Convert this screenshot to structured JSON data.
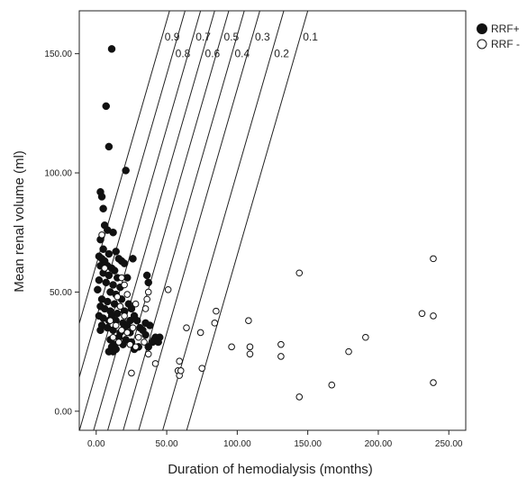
{
  "chart_data": {
    "type": "scatter",
    "xlabel": "Duration of hemodialysis (months)",
    "ylabel": "Mean renal volume (ml)",
    "xlim": [
      -12,
      262
    ],
    "ylim": [
      -8,
      168
    ],
    "x_ticks": [
      0,
      50,
      100,
      150,
      200,
      250
    ],
    "x_tick_labels": [
      "0.00",
      "50.00",
      "100.00",
      "150.00",
      "200.00",
      "250.00"
    ],
    "y_ticks": [
      0,
      50,
      100,
      150
    ],
    "y_tick_labels": [
      "0.00",
      "50.00",
      "100.00",
      "150.00"
    ],
    "grid": false,
    "legend_position": "right-top",
    "series": [
      {
        "name": "RRF+",
        "marker": "filled-circle",
        "color": "#111111",
        "points": [
          [
            3,
            92
          ],
          [
            4,
            90
          ],
          [
            11,
            152
          ],
          [
            7,
            128
          ],
          [
            9,
            111
          ],
          [
            21,
            101
          ],
          [
            5,
            85
          ],
          [
            6,
            78
          ],
          [
            8,
            76
          ],
          [
            12,
            75
          ],
          [
            3,
            72
          ],
          [
            5,
            68
          ],
          [
            9,
            66
          ],
          [
            14,
            67
          ],
          [
            2,
            65
          ],
          [
            4,
            64
          ],
          [
            6,
            63
          ],
          [
            16,
            64
          ],
          [
            18,
            63
          ],
          [
            20,
            62
          ],
          [
            26,
            64
          ],
          [
            3,
            61
          ],
          [
            8,
            61
          ],
          [
            11,
            60
          ],
          [
            5,
            58
          ],
          [
            9,
            57
          ],
          [
            13,
            59
          ],
          [
            15,
            56
          ],
          [
            22,
            56
          ],
          [
            2,
            55
          ],
          [
            7,
            54
          ],
          [
            12,
            53
          ],
          [
            17,
            52
          ],
          [
            1,
            51
          ],
          [
            10,
            50
          ],
          [
            14,
            49
          ],
          [
            4,
            47
          ],
          [
            8,
            46
          ],
          [
            13,
            45
          ],
          [
            18,
            47
          ],
          [
            23,
            45
          ],
          [
            36,
            57
          ],
          [
            37,
            54
          ],
          [
            3,
            44
          ],
          [
            6,
            43
          ],
          [
            10,
            42
          ],
          [
            15,
            41
          ],
          [
            20,
            42
          ],
          [
            25,
            43
          ],
          [
            11,
            40
          ],
          [
            2,
            40
          ],
          [
            5,
            39
          ],
          [
            9,
            38
          ],
          [
            14,
            38
          ],
          [
            19,
            37
          ],
          [
            24,
            38
          ],
          [
            4,
            36
          ],
          [
            8,
            35
          ],
          [
            12,
            34
          ],
          [
            17,
            33
          ],
          [
            22,
            36
          ],
          [
            3,
            34
          ],
          [
            27,
            40
          ],
          [
            31,
            35
          ],
          [
            10,
            30
          ],
          [
            13,
            28
          ],
          [
            16,
            31
          ],
          [
            21,
            30
          ],
          [
            25,
            29
          ],
          [
            11,
            27
          ],
          [
            12,
            25
          ],
          [
            14,
            26
          ],
          [
            19,
            28
          ],
          [
            27,
            26
          ],
          [
            33,
            34
          ],
          [
            38,
            36
          ],
          [
            41,
            30
          ],
          [
            42,
            31
          ],
          [
            40,
            29
          ],
          [
            37,
            27
          ],
          [
            35,
            32
          ],
          [
            30,
            27
          ],
          [
            9,
            25
          ],
          [
            29,
            38
          ],
          [
            35,
            37
          ],
          [
            24,
            33
          ],
          [
            20,
            35
          ],
          [
            45,
            31
          ],
          [
            44,
            29
          ]
        ]
      },
      {
        "name": "RRF -",
        "marker": "open-circle",
        "color": "#111111",
        "points": [
          [
            4,
            74
          ],
          [
            6,
            60
          ],
          [
            18,
            56
          ],
          [
            20,
            53
          ],
          [
            22,
            49
          ],
          [
            37,
            50
          ],
          [
            36,
            47
          ],
          [
            51,
            51
          ],
          [
            28,
            45
          ],
          [
            35,
            43
          ],
          [
            15,
            48
          ],
          [
            17,
            44
          ],
          [
            20,
            40
          ],
          [
            10,
            38
          ],
          [
            14,
            36
          ],
          [
            18,
            34
          ],
          [
            22,
            33
          ],
          [
            26,
            35
          ],
          [
            30,
            31
          ],
          [
            12,
            31
          ],
          [
            16,
            29
          ],
          [
            24,
            28
          ],
          [
            28,
            27
          ],
          [
            34,
            29
          ],
          [
            37,
            24
          ],
          [
            25,
            16
          ],
          [
            42,
            20
          ],
          [
            59,
            21
          ],
          [
            58,
            17
          ],
          [
            59,
            15
          ],
          [
            60,
            17
          ],
          [
            64,
            35
          ],
          [
            74,
            33
          ],
          [
            75,
            18
          ],
          [
            84,
            37
          ],
          [
            85,
            42
          ],
          [
            96,
            27
          ],
          [
            108,
            38
          ],
          [
            109,
            27
          ],
          [
            109,
            24
          ],
          [
            131,
            28
          ],
          [
            131,
            23
          ],
          [
            144,
            58
          ],
          [
            144,
            6
          ],
          [
            167,
            11
          ],
          [
            179,
            25
          ],
          [
            191,
            31
          ],
          [
            231,
            41
          ],
          [
            239,
            64
          ],
          [
            239,
            40
          ],
          [
            239,
            12
          ]
        ]
      }
    ],
    "reference_lines": [
      {
        "label": "0.9",
        "x_at_ylim_top": 52,
        "slope": 2.05
      },
      {
        "label": "0.8",
        "x_at_ylim_top": 63,
        "slope": 2.05
      },
      {
        "label": "0.7",
        "x_at_ylim_top": 74,
        "slope": 2.05
      },
      {
        "label": "0.6",
        "x_at_ylim_top": 84,
        "slope": 2.05
      },
      {
        "label": "0.5",
        "x_at_ylim_top": 94,
        "slope": 2.05
      },
      {
        "label": "0.4",
        "x_at_ylim_top": 105,
        "slope": 2.05
      },
      {
        "label": "0.3",
        "x_at_ylim_top": 116,
        "slope": 2.05
      },
      {
        "label": "0.2",
        "x_at_ylim_top": 133,
        "slope": 2.05
      },
      {
        "label": "0.1",
        "x_at_ylim_top": 150,
        "slope": 2.05
      }
    ]
  }
}
